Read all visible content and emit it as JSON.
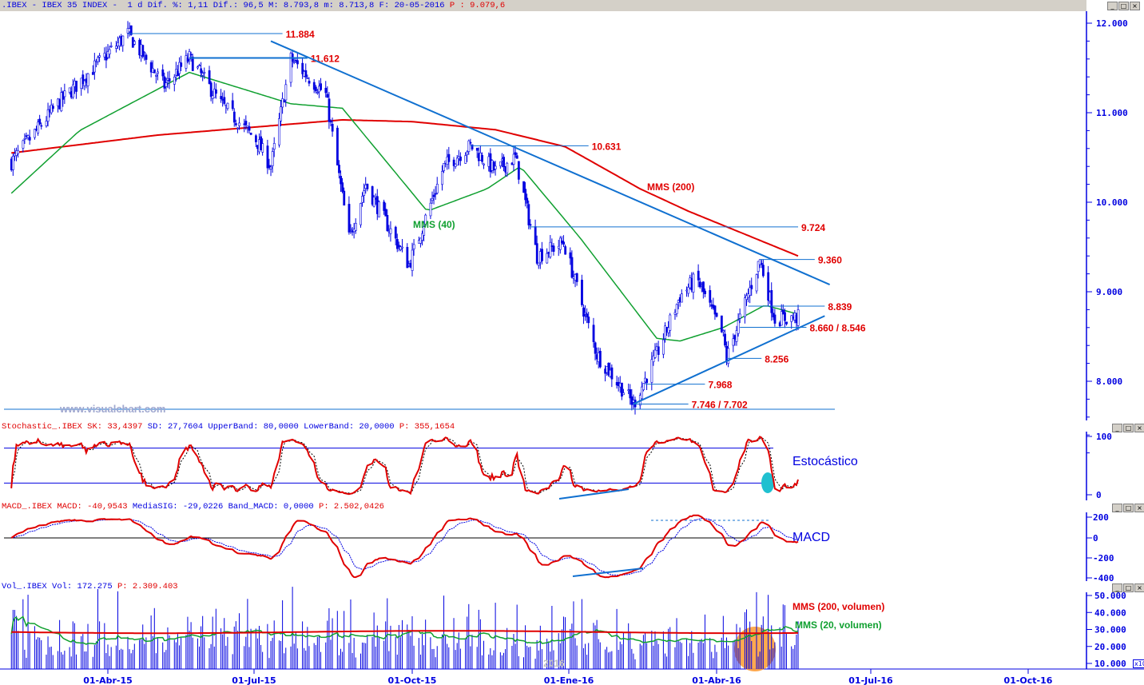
{
  "header": {
    "symbol": ".IBEX - IBEX 35 INDEX -  1 d",
    "dif_pct": "Dif. %: 1,11",
    "dif": "Dif.: 96,5",
    "max": "M: 8.793,8",
    "min": "m: 8.713,8",
    "date": "F: 20-05-2016",
    "p": "P : 9.079,6"
  },
  "stoch_header": {
    "name": "Stochastic_.IBEX",
    "sk": "SK: 33,4397",
    "sd": "SD: 27,7604",
    "upper": "UpperBand: 80,0000",
    "lower": "LowerBand: 20,0000",
    "p": "P: 355,1654"
  },
  "macd_header": {
    "name": "MACD_.IBEX",
    "macd": "MACD: -40,9543",
    "sig": "MediaSIG: -29,0226",
    "band": "Band_MACD: 0,0000",
    "p": "P: 2.502,0426"
  },
  "vol_header": {
    "name": "Vol_.IBEX",
    "vol": "Vol: 172.275",
    "p": "P: 2.309.403"
  },
  "labels": {
    "mms200": "MMS (200)",
    "mms40": "MMS (40)",
    "estocastico": "Estocástico",
    "macd": "MACD",
    "mms200vol": "MMS (200, volumen)",
    "mms20vol": "MMS (20, volumen)",
    "watermark": "www.visualchart.com",
    "year": "2016",
    "x10": "x10"
  },
  "colors": {
    "price": "#0000e0",
    "mms200": "#e00000",
    "mms40": "#10a030",
    "trend": "#1070d0",
    "stoch": "#e00000",
    "highlight_stoch": "#20c0d0",
    "highlight_vol": "#ff9a30"
  },
  "chart_data": [
    {
      "type": "candlestick",
      "title": ".IBEX - IBEX 35 INDEX",
      "y_ticks": [
        "12.000",
        "11.000",
        "10.000",
        "9.000",
        "8.000"
      ],
      "ylim": [
        7500,
        12200
      ],
      "x_ticks": [
        "01-Abr-15",
        "01-Jul-15",
        "01-Oct-15",
        "01-Ene-16",
        "01-Abr-16",
        "01-Jul-16",
        "01-Oct-16"
      ],
      "price_path": [
        [
          "2015-02-02",
          10450
        ],
        [
          "2015-03-02",
          11100
        ],
        [
          "2015-04-13",
          11884
        ],
        [
          "2015-05-05",
          11300
        ],
        [
          "2015-05-20",
          11612
        ],
        [
          "2015-06-08",
          11100
        ],
        [
          "2015-06-29",
          10700
        ],
        [
          "2015-07-08",
          10400
        ],
        [
          "2015-07-20",
          11600
        ],
        [
          "2015-08-10",
          11200
        ],
        [
          "2015-08-24",
          9600
        ],
        [
          "2015-09-03",
          10200
        ],
        [
          "2015-09-29",
          9300
        ],
        [
          "2015-10-20",
          10400
        ],
        [
          "2015-11-05",
          10631
        ],
        [
          "2015-11-20",
          10350
        ],
        [
          "2015-12-02",
          10500
        ],
        [
          "2015-12-15",
          9400
        ],
        [
          "2015-12-31",
          9550
        ],
        [
          "2016-01-20",
          8300
        ],
        [
          "2016-02-11",
          7746
        ],
        [
          "2016-02-25",
          8300
        ],
        [
          "2016-03-10",
          8950
        ],
        [
          "2016-03-20",
          9150
        ],
        [
          "2016-04-05",
          8500
        ],
        [
          "2016-04-07",
          8256
        ],
        [
          "2016-04-27",
          9360
        ],
        [
          "2016-05-06",
          8700
        ],
        [
          "2016-05-20",
          8713
        ]
      ],
      "mms200": [
        [
          "2015-02-02",
          10550
        ],
        [
          "2015-05-01",
          10750
        ],
        [
          "2015-08-20",
          10920
        ],
        [
          "2015-10-01",
          10900
        ],
        [
          "2015-11-20",
          10810
        ],
        [
          "2016-01-01",
          10620
        ],
        [
          "2016-02-15",
          10150
        ],
        [
          "2016-03-15",
          9900
        ],
        [
          "2016-05-20",
          9400
        ]
      ],
      "mms40": [
        [
          "2015-02-02",
          10100
        ],
        [
          "2015-03-15",
          10800
        ],
        [
          "2015-05-20",
          11450
        ],
        [
          "2015-07-20",
          11100
        ],
        [
          "2015-08-20",
          11050
        ],
        [
          "2015-10-10",
          9900
        ],
        [
          "2015-11-15",
          10150
        ],
        [
          "2015-12-05",
          10400
        ],
        [
          "2016-01-10",
          9600
        ],
        [
          "2016-02-25",
          8480
        ],
        [
          "2016-03-10",
          8450
        ],
        [
          "2016-04-05",
          8600
        ],
        [
          "2016-04-30",
          8850
        ],
        [
          "2016-05-20",
          8750
        ]
      ],
      "levels": [
        {
          "label": "11.884",
          "value": 11884,
          "from": "2015-04-13",
          "to": "2015-07-15"
        },
        {
          "label": "11.612",
          "value": 11612,
          "from": "2015-05-20",
          "to": "2015-07-30"
        },
        {
          "label": "10.631",
          "value": 10631,
          "from": "2015-11-05",
          "to": "2016-01-15"
        },
        {
          "label": "9.724",
          "value": 9724,
          "from": "2015-12-10",
          "to": "2016-05-20"
        },
        {
          "label": "9.360",
          "value": 9360,
          "from": "2016-04-27",
          "to": "2016-05-30"
        },
        {
          "label": "8.839",
          "value": 8839,
          "from": "2016-04-20",
          "to": "2016-06-05"
        },
        {
          "label": "8.660 / 8.546",
          "value": 8603,
          "from": "2016-04-15",
          "to": "2016-05-25"
        },
        {
          "label": "8.256",
          "value": 8256,
          "from": "2016-04-07",
          "to": "2016-04-28"
        },
        {
          "label": "7.968",
          "value": 7968,
          "from": "2016-02-18",
          "to": "2016-03-25"
        },
        {
          "label": "7.746 / 7.702",
          "value": 7746,
          "from": "2016-02-11",
          "to": "2016-03-15"
        }
      ],
      "trendlines": [
        {
          "from": [
            "2015-07-08",
            11800
          ],
          "to": [
            "2016-06-08",
            9080
          ]
        },
        {
          "from": [
            "2016-02-11",
            7746
          ],
          "to": [
            "2016-06-05",
            8730
          ]
        }
      ]
    },
    {
      "type": "line",
      "title": "Stochastic_.IBEX",
      "y_ticks": [
        "100",
        "0"
      ],
      "ylim": [
        0,
        100
      ],
      "bands": [
        20,
        80
      ],
      "last": {
        "sk": 33.4397,
        "sd": 27.7604
      }
    },
    {
      "type": "line",
      "title": "MACD_.IBEX",
      "y_ticks": [
        "200",
        "0",
        "-200",
        "-400"
      ],
      "ylim": [
        -400,
        200
      ],
      "last": {
        "macd": -40.9543,
        "signal": -29.0226
      }
    },
    {
      "type": "bar",
      "title": "Vol_.IBEX",
      "y_ticks": [
        "50.000",
        "40.000",
        "30.000",
        "20.000",
        "10.000"
      ],
      "ylim": [
        10000,
        50000
      ],
      "last": 172275
    }
  ]
}
